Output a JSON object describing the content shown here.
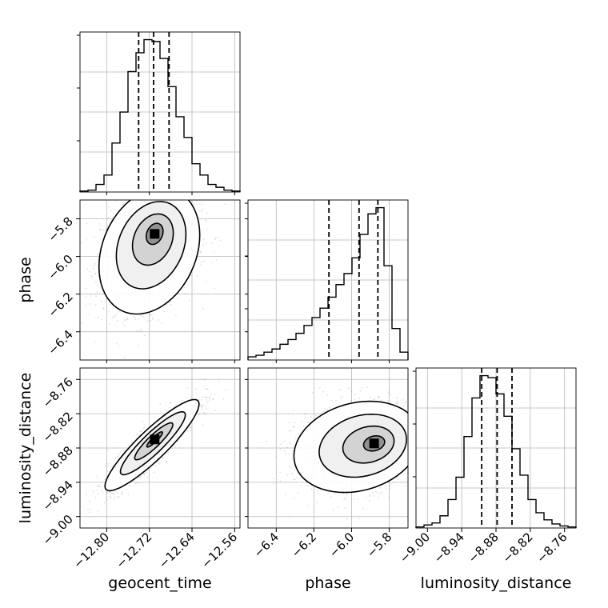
{
  "chart_data": {
    "type": "corner",
    "variables": [
      {
        "name": "geocent_time",
        "label": "geocent_time",
        "range": [
          -12.85,
          -12.55
        ],
        "ticks": [
          -12.8,
          -12.72,
          -12.64,
          -12.56
        ],
        "tick_labels": [
          "−12.80",
          "−12.72",
          "−12.64",
          "−12.56"
        ],
        "quantiles": [
          -12.74,
          -12.712,
          -12.683
        ],
        "hist_counts": [
          1,
          2,
          8,
          18,
          52,
          85,
          128,
          148,
          162,
          160,
          142,
          112,
          80,
          58,
          30,
          18,
          8,
          5,
          2,
          1
        ]
      },
      {
        "name": "phase",
        "label": "phase",
        "range": [
          -6.55,
          -5.7
        ],
        "ticks": [
          -6.4,
          -6.2,
          -6.0,
          -5.8
        ],
        "tick_labels": [
          "−6.4",
          "−6.2",
          "−6.0",
          "−5.8"
        ],
        "quantiles": [
          -6.12,
          -5.96,
          -5.86
        ],
        "hist_counts": [
          2,
          3,
          5,
          7,
          10,
          13,
          17,
          22,
          27,
          33,
          40,
          48,
          55,
          65,
          80,
          93,
          97,
          60,
          20,
          5
        ]
      },
      {
        "name": "luminosity_distance",
        "label": "luminosity_distance",
        "range": [
          -9.02,
          -8.74
        ],
        "ticks": [
          -9.0,
          -8.94,
          -8.88,
          -8.82,
          -8.76
        ],
        "tick_labels": [
          "−9.00",
          "−8.94",
          "−8.88",
          "−8.82",
          "−8.76"
        ],
        "quantiles": [
          -8.905,
          -8.878,
          -8.852
        ],
        "hist_counts": [
          1,
          3,
          5,
          12,
          28,
          50,
          90,
          128,
          150,
          148,
          132,
          110,
          78,
          52,
          28,
          15,
          8,
          4,
          2,
          1
        ]
      }
    ],
    "pairs": [
      {
        "x": "geocent_time",
        "y": "phase",
        "mean": [
          -12.72,
          -5.97
        ],
        "sd": [
          0.045,
          0.16
        ],
        "corr": 0.25,
        "peak": [
          -12.71,
          -5.88
        ]
      },
      {
        "x": "geocent_time",
        "y": "luminosity_distance",
        "mean": [
          -12.715,
          -8.875
        ],
        "sd": [
          0.042,
          0.038
        ],
        "corr": 0.9,
        "peak": [
          -12.71,
          -8.865
        ]
      },
      {
        "x": "phase",
        "y": "luminosity_distance",
        "mean": [
          -5.97,
          -8.878
        ],
        "sd": [
          0.16,
          0.038
        ],
        "corr": 0.2,
        "peak": [
          -5.88,
          -8.872
        ]
      }
    ],
    "grid": true,
    "quantile_line_style": "dashed"
  }
}
